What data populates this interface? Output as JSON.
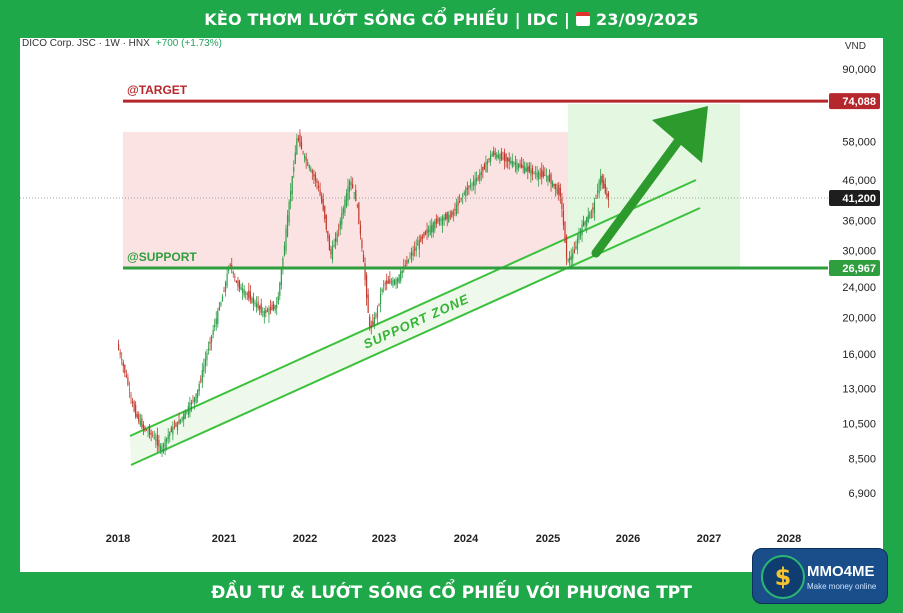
{
  "header": {
    "title": "KÈO THƠM LƯỚT SÓNG CỔ PHIẾU | IDC |",
    "date": "23/09/2025"
  },
  "footer": {
    "title": "ĐẦU TƯ & LƯỚT SÓNG CỔ PHIẾU VỚI PHƯƠNG TPT"
  },
  "logo": {
    "name": "MMO4ME",
    "tagline": "Make money online",
    "symbol": "$"
  },
  "chart_data": {
    "type": "candlestick",
    "symbol_info": "DICO Corp. JSC · 1W · HNX",
    "change": "+700 (+1.73%)",
    "currency": "VND",
    "scale": "log",
    "x_ticks": [
      "2018",
      "2021",
      "2022",
      "2023",
      "2024",
      "2025",
      "2026",
      "2027",
      "2028"
    ],
    "y_ticks": [
      "90,000",
      "58,000",
      "46,000",
      "36,000",
      "30,000",
      "24,000",
      "20,000",
      "16,000",
      "13,000",
      "10,500",
      "8,500",
      "6,900"
    ],
    "y_tick_values": [
      90000,
      58000,
      46000,
      36000,
      30000,
      24000,
      20000,
      16000,
      13000,
      10500,
      8500,
      6900
    ],
    "current_price": {
      "label": "41,200",
      "value": 41200
    },
    "levels": [
      {
        "name": "@TARGET",
        "label": "74,088",
        "value": 74088,
        "color": "#b5272d"
      },
      {
        "name": "@SUPPORT",
        "label": "26,967",
        "value": 26967,
        "color": "#2e9e3e"
      }
    ],
    "annotations": {
      "support_zone": "SUPPORT ZONE"
    },
    "price_path": [
      [
        "2018-01",
        17000
      ],
      [
        "2018-04",
        14000
      ],
      [
        "2018-07",
        11200
      ],
      [
        "2018-10",
        10200
      ],
      [
        "2019-01",
        9800
      ],
      [
        "2019-04",
        9000
      ],
      [
        "2019-07",
        10000
      ],
      [
        "2019-10",
        10600
      ],
      [
        "2020-01",
        11500
      ],
      [
        "2020-04",
        12500
      ],
      [
        "2020-07",
        15500
      ],
      [
        "2020-10",
        19000
      ],
      [
        "2021-01",
        23000
      ],
      [
        "2021-02",
        27800
      ],
      [
        "2021-03",
        24500
      ],
      [
        "2021-05",
        22500
      ],
      [
        "2021-07",
        20500
      ],
      [
        "2021-09",
        21500
      ],
      [
        "2021-10",
        30000
      ],
      [
        "2021-11",
        43000
      ],
      [
        "2021-12",
        60000
      ],
      [
        "2022-01",
        53000
      ],
      [
        "2022-03",
        45000
      ],
      [
        "2022-04",
        38000
      ],
      [
        "2022-05",
        29000
      ],
      [
        "2022-06",
        33000
      ],
      [
        "2022-08",
        46000
      ],
      [
        "2022-09",
        40000
      ],
      [
        "2022-10",
        28000
      ],
      [
        "2022-11",
        18500
      ],
      [
        "2022-12",
        20500
      ],
      [
        "2023-01",
        24500
      ],
      [
        "2023-03",
        25000
      ],
      [
        "2023-05",
        29000
      ],
      [
        "2023-07",
        33000
      ],
      [
        "2023-09",
        36000
      ],
      [
        "2023-11",
        37000
      ],
      [
        "2024-01",
        43000
      ],
      [
        "2024-03",
        47000
      ],
      [
        "2024-05",
        54000
      ],
      [
        "2024-07",
        52000
      ],
      [
        "2024-09",
        50000
      ],
      [
        "2024-11",
        48000
      ],
      [
        "2025-01",
        47000
      ],
      [
        "2025-03",
        42000
      ],
      [
        "2025-04",
        28000
      ],
      [
        "2025-05",
        29500
      ],
      [
        "2025-06",
        34000
      ],
      [
        "2025-08",
        39000
      ],
      [
        "2025-09",
        47000
      ],
      [
        "2025-10",
        41200
      ]
    ]
  }
}
